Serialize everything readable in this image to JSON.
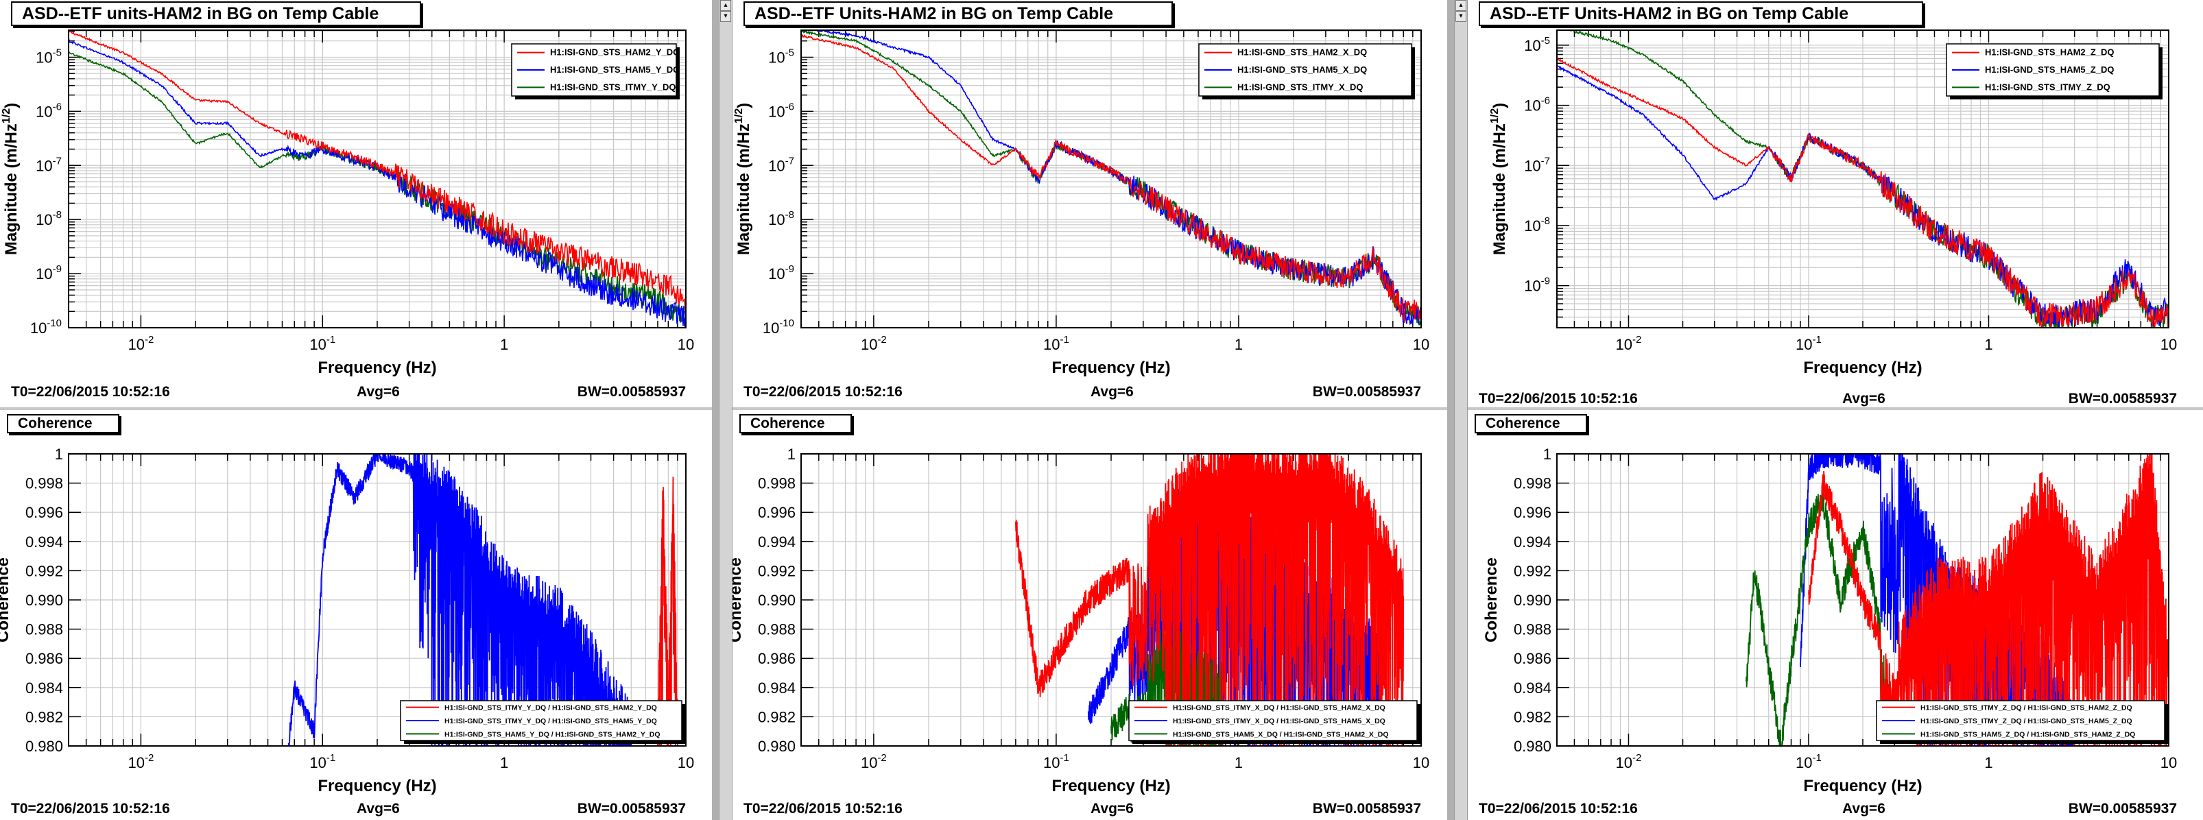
{
  "panels": [
    {
      "title": "ASD--ETF units-HAM2 in BG on Temp Cable",
      "kind": "asd",
      "ylabel": "Magnitude (m/Hz",
      "ysup": "1/2",
      "ysuffix": ")",
      "xlabel": "Frequency (Hz)",
      "footer": {
        "t0": "T0=22/06/2015 10:52:16",
        "avg": "Avg=6",
        "bw": "BW=0.00585937"
      },
      "legend": [
        "H1:ISI-GND_STS_HAM2_Y_DQ",
        "H1:ISI-GND_STS_HAM5_Y_DQ",
        "H1:ISI-GND_STS_ITMY_Y_DQ"
      ]
    },
    {
      "title": "ASD--ETF Units-HAM2 in BG on Temp Cable",
      "kind": "asd",
      "ylabel": "Magnitude (m/Hz",
      "ysup": "1/2",
      "ysuffix": ")",
      "xlabel": "Frequency (Hz)",
      "footer": {
        "t0": "T0=22/06/2015 10:52:16",
        "avg": "Avg=6",
        "bw": "BW=0.00585937"
      },
      "legend": [
        "H1:ISI-GND_STS_HAM2_X_DQ",
        "H1:ISI-GND_STS_HAM5_X_DQ",
        "H1:ISI-GND_STS_ITMY_X_DQ"
      ]
    },
    {
      "title": "ASD--ETF Units-HAM2 in BG on Temp Cable",
      "kind": "asd",
      "ylabel": "Magnitude (m/Hz",
      "ysup": "1/2",
      "ysuffix": ")",
      "xlabel": "Frequency (Hz)",
      "footer": {
        "t0": "T0=22/06/2015 10:52:16",
        "avg": "Avg=6",
        "bw": "BW=0.00585937"
      },
      "legend": [
        "H1:ISI-GND_STS_HAM2_Z_DQ",
        "H1:ISI-GND_STS_HAM5_Z_DQ",
        "H1:ISI-GND_STS_ITMY_Z_DQ"
      ]
    },
    {
      "title": "Coherence",
      "kind": "coh",
      "ylabel": "Coherence",
      "xlabel": "Frequency (Hz)",
      "footer": {
        "t0": "T0=22/06/2015 10:52:16",
        "avg": "Avg=6",
        "bw": "BW=0.00585937"
      },
      "legend": [
        "H1:ISI-GND_STS_ITMY_Y_DQ / H1:ISI-GND_STS_HAM2_Y_DQ",
        "H1:ISI-GND_STS_ITMY_Y_DQ / H1:ISI-GND_STS_HAM5_Y_DQ",
        "H1:ISI-GND_STS_HAM5_Y_DQ / H1:ISI-GND_STS_HAM2_Y_DQ"
      ]
    },
    {
      "title": "Coherence",
      "kind": "coh",
      "ylabel": "Coherence",
      "xlabel": "Frequency (Hz)",
      "footer": {
        "t0": "T0=22/06/2015 10:52:16",
        "avg": "Avg=6",
        "bw": "BW=0.00585937"
      },
      "legend": [
        "H1:ISI-GND_STS_ITMY_X_DQ / H1:ISI-GND_STS_HAM2_X_DQ",
        "H1:ISI-GND_STS_ITMY_X_DQ / H1:ISI-GND_STS_HAM5_X_DQ",
        "H1:ISI-GND_STS_HAM5_X_DQ / H1:ISI-GND_STS_HAM2_X_DQ"
      ]
    },
    {
      "title": "Coherence",
      "kind": "coh",
      "ylabel": "Coherence",
      "xlabel": "Frequency (Hz)",
      "footer": {
        "t0": "T0=22/06/2015 10:52:16",
        "avg": "Avg=6",
        "bw": "BW=0.00585937"
      },
      "legend": [
        "H1:ISI-GND_STS_ITMY_Z_DQ / H1:ISI-GND_STS_HAM2_Z_DQ",
        "H1:ISI-GND_STS_ITMY_Z_DQ / H1:ISI-GND_STS_HAM5_Z_DQ",
        "H1:ISI-GND_STS_HAM5_Z_DQ / H1:ISI-GND_STS_HAM2_Z_DQ"
      ]
    }
  ],
  "colors": {
    "red": "#ff0000",
    "blue": "#0000ff",
    "green": "#006400"
  },
  "chart_data": [
    {
      "type": "line",
      "panel": 0,
      "title": "ASD--ETF units-HAM2 in BG on Temp Cable",
      "xlabel": "Frequency (Hz)",
      "ylabel": "Magnitude (m/Hz^1/2)",
      "xscale": "log",
      "yscale": "log",
      "xlim": [
        0.004,
        10
      ],
      "ylim": [
        8e-11,
        5e-05
      ],
      "grid": true,
      "legend_position": "top-right",
      "x": [
        0.004,
        0.008,
        0.013,
        0.02,
        0.03,
        0.045,
        0.06,
        0.08,
        0.1,
        0.2,
        0.5,
        1,
        2,
        4,
        6,
        8,
        10
      ],
      "series": [
        {
          "name": "H1:ISI-GND_STS_HAM2_Y_DQ",
          "color": "red",
          "values": [
            3e-05,
            1.2e-05,
            5e-06,
            1.6e-06,
            1.5e-06,
            6e-07,
            4e-07,
            3e-07,
            2.3e-07,
            1e-07,
            2e-08,
            6e-09,
            2.5e-09,
            1.3e-09,
            9e-10,
            6e-10,
            3e-10
          ]
        },
        {
          "name": "H1:ISI-GND_STS_HAM5_Y_DQ",
          "color": "blue",
          "values": [
            2e-05,
            8e-06,
            3e-06,
            6e-07,
            6e-07,
            1.5e-07,
            2e-07,
            1.5e-07,
            2e-07,
            9e-08,
            1.3e-08,
            4e-09,
            1.2e-09,
            4e-10,
            3e-10,
            2e-10,
            1.5e-10
          ]
        },
        {
          "name": "H1:ISI-GND_STS_ITMY_Y_DQ",
          "color": "green",
          "values": [
            1.2e-05,
            5e-06,
            1.5e-06,
            2.5e-07,
            4e-07,
            9e-08,
            1.5e-07,
            1.5e-07,
            2e-07,
            9e-08,
            1.5e-08,
            5e-09,
            1.5e-09,
            6e-10,
            4e-10,
            2.5e-10,
            1.5e-10
          ]
        }
      ]
    },
    {
      "type": "line",
      "panel": 1,
      "title": "ASD--ETF Units-HAM2 in BG on Temp Cable",
      "xlabel": "Frequency (Hz)",
      "ylabel": "Magnitude (m/Hz^1/2)",
      "xscale": "log",
      "yscale": "log",
      "xlim": [
        0.004,
        10
      ],
      "ylim": [
        8e-11,
        5e-05
      ],
      "grid": true,
      "legend_position": "top-right",
      "x": [
        0.004,
        0.008,
        0.013,
        0.02,
        0.03,
        0.045,
        0.06,
        0.08,
        0.1,
        0.2,
        0.5,
        1,
        2,
        4,
        5.5,
        8,
        10
      ],
      "series": [
        {
          "name": "H1:ISI-GND_STS_HAM2_X_DQ",
          "color": "red",
          "values": [
            2.5e-05,
            1.5e-05,
            6e-06,
            1e-06,
            3e-07,
            1e-07,
            2e-07,
            6e-08,
            2.5e-07,
            8e-08,
            1e-08,
            2.5e-09,
            1.2e-09,
            8e-10,
            2e-09,
            2e-10,
            2e-10
          ]
        },
        {
          "name": "H1:ISI-GND_STS_HAM5_X_DQ",
          "color": "blue",
          "values": [
            3.5e-05,
            2.5e-05,
            1.5e-05,
            1e-05,
            3e-06,
            3e-07,
            2e-07,
            5e-08,
            2.5e-07,
            8e-08,
            1e-08,
            2.5e-09,
            1.2e-09,
            8e-10,
            2e-09,
            2e-10,
            1.5e-10
          ]
        },
        {
          "name": "H1:ISI-GND_STS_ITMY_X_DQ",
          "color": "green",
          "values": [
            3e-05,
            2e-05,
            8e-06,
            3e-06,
            1e-06,
            1.5e-07,
            2e-07,
            5e-08,
            2.5e-07,
            8e-08,
            1e-08,
            2.5e-09,
            1.2e-09,
            8e-10,
            2e-09,
            2e-10,
            1.5e-10
          ]
        }
      ]
    },
    {
      "type": "line",
      "panel": 2,
      "title": "ASD--ETF Units-HAM2 in BG on Temp Cable",
      "xlabel": "Frequency (Hz)",
      "ylabel": "Magnitude (m/Hz^1/2)",
      "xscale": "log",
      "yscale": "log",
      "xlim": [
        0.004,
        10
      ],
      "ylim": [
        2e-10,
        2e-05
      ],
      "grid": true,
      "legend_position": "top-right",
      "x": [
        0.004,
        0.008,
        0.012,
        0.02,
        0.03,
        0.045,
        0.06,
        0.08,
        0.1,
        0.2,
        0.5,
        1,
        2,
        4,
        6,
        8,
        10
      ],
      "series": [
        {
          "name": "H1:ISI-GND_STS_HAM2_Z_DQ",
          "color": "red",
          "values": [
            6e-06,
            2e-06,
            1.2e-06,
            6e-07,
            2e-07,
            1e-07,
            2e-07,
            6e-08,
            3e-07,
            1e-07,
            8e-09,
            3e-09,
            3e-10,
            4e-10,
            1.5e-09,
            3e-10,
            3e-10
          ]
        },
        {
          "name": "H1:ISI-GND_STS_HAM5_Z_DQ",
          "color": "blue",
          "values": [
            4.5e-06,
            1.5e-06,
            7e-07,
            1.5e-07,
            2.7e-08,
            5e-08,
            2e-07,
            6e-08,
            3e-07,
            1e-07,
            8e-09,
            3e-09,
            3e-10,
            4e-10,
            2e-09,
            3e-10,
            4e-10
          ]
        },
        {
          "name": "H1:ISI-GND_STS_ITMY_Z_DQ",
          "color": "green",
          "values": [
            2e-05,
            1.2e-05,
            7e-06,
            2.5e-06,
            7e-07,
            2.5e-07,
            2e-07,
            6e-08,
            3e-07,
            1e-07,
            8e-09,
            3e-09,
            2.5e-10,
            3.5e-10,
            1.5e-09,
            3e-10,
            3e-10
          ]
        }
      ]
    },
    {
      "type": "line",
      "panel": 3,
      "title": "Coherence",
      "xlabel": "Frequency (Hz)",
      "ylabel": "Coherence",
      "xscale": "log",
      "xlim": [
        0.004,
        10
      ],
      "ylim": [
        0.98,
        1
      ],
      "grid": true,
      "legend_position": "bottom-right",
      "series": [
        {
          "name": "H1:ISI-GND_STS_ITMY_Y_DQ / H1:ISI-GND_STS_HAM2_Y_DQ",
          "color": "red",
          "x": [
            7,
            7.5,
            8,
            8.5,
            9
          ],
          "values": [
            0.98,
            0.996,
            0.982,
            0.997,
            0.98
          ]
        },
        {
          "name": "H1:ISI-GND_STS_ITMY_Y_DQ / H1:ISI-GND_STS_HAM5_Y_DQ",
          "color": "blue",
          "x": [
            0.065,
            0.07,
            0.09,
            0.1,
            0.12,
            0.15,
            0.2,
            0.3,
            0.4,
            0.6,
            1,
            2,
            3,
            5
          ],
          "values": [
            0.98,
            0.984,
            0.981,
            0.993,
            0.999,
            0.997,
            1.0,
            0.999,
            0.997,
            0.995,
            0.99,
            0.988,
            0.985,
            0.98
          ]
        },
        {
          "name": "H1:ISI-GND_STS_HAM5_Y_DQ / H1:ISI-GND_STS_HAM2_Y_DQ",
          "color": "green",
          "x": [],
          "values": []
        }
      ]
    },
    {
      "type": "line",
      "panel": 4,
      "title": "Coherence",
      "xlabel": "Frequency (Hz)",
      "ylabel": "Coherence",
      "xscale": "log",
      "xlim": [
        0.004,
        10
      ],
      "ylim": [
        0.98,
        1
      ],
      "grid": true,
      "legend_position": "bottom-right",
      "series": [
        {
          "name": "H1:ISI-GND_STS_ITMY_X_DQ / H1:ISI-GND_STS_HAM2_X_DQ",
          "color": "red",
          "x": [
            0.06,
            0.08,
            0.15,
            0.3,
            0.5,
            1,
            2,
            3,
            5,
            8
          ],
          "values": [
            0.995,
            0.984,
            0.99,
            0.993,
            0.997,
            0.999,
            0.998,
            0.999,
            0.995,
            0.99
          ]
        },
        {
          "name": "H1:ISI-GND_STS_ITMY_X_DQ / H1:ISI-GND_STS_HAM5_X_DQ",
          "color": "blue",
          "x": [
            0.15,
            0.3,
            0.5,
            1,
            2,
            4,
            6
          ],
          "values": [
            0.982,
            0.99,
            0.996,
            0.995,
            0.99,
            0.988,
            0.985
          ]
        },
        {
          "name": "H1:ISI-GND_STS_HAM5_X_DQ / H1:ISI-GND_STS_HAM2_X_DQ",
          "color": "green",
          "x": [
            0.2,
            0.4,
            0.8
          ],
          "values": [
            0.981,
            0.986,
            0.983
          ]
        }
      ]
    },
    {
      "type": "line",
      "panel": 5,
      "title": "Coherence",
      "xlabel": "Frequency (Hz)",
      "ylabel": "Coherence",
      "xscale": "log",
      "xlim": [
        0.004,
        10
      ],
      "ylim": [
        0.98,
        1
      ],
      "grid": true,
      "legend_position": "bottom-right",
      "series": [
        {
          "name": "H1:ISI-GND_STS_ITMY_Z_DQ / H1:ISI-GND_STS_HAM2_Z_DQ",
          "color": "red",
          "x": [
            0.1,
            0.12,
            0.15,
            0.2,
            0.3,
            0.5,
            1,
            2,
            4,
            8,
            10
          ],
          "values": [
            0.99,
            0.998,
            0.995,
            0.99,
            0.985,
            0.99,
            0.99,
            0.996,
            0.99,
            0.998,
            0.985
          ]
        },
        {
          "name": "H1:ISI-GND_STS_ITMY_Z_DQ / H1:ISI-GND_STS_HAM5_Z_DQ",
          "color": "blue",
          "x": [
            0.09,
            0.1,
            0.12,
            0.2,
            0.3,
            0.4,
            0.6,
            1,
            2,
            3
          ],
          "values": [
            0.985,
            0.999,
            1.0,
            1.0,
            0.999,
            0.995,
            0.99,
            0.988,
            0.985,
            0.98
          ]
        },
        {
          "name": "H1:ISI-GND_STS_HAM5_Z_DQ / H1:ISI-GND_STS_HAM2_Z_DQ",
          "color": "green",
          "x": [
            0.045,
            0.05,
            0.07,
            0.1,
            0.12,
            0.15,
            0.2,
            0.3
          ],
          "values": [
            0.984,
            0.992,
            0.98,
            0.995,
            0.997,
            0.99,
            0.995,
            0.982
          ]
        }
      ]
    }
  ]
}
